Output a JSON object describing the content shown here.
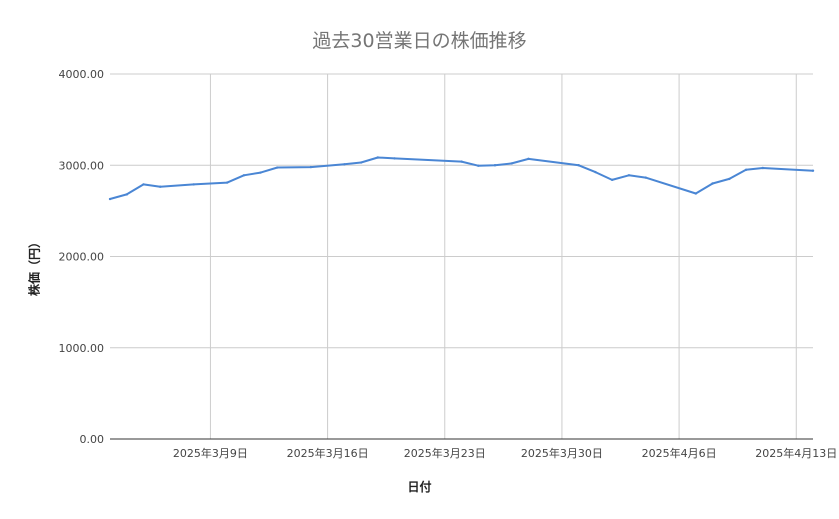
{
  "chart_data": {
    "type": "line",
    "title": "過去30営業日の株価推移",
    "xlabel": "日付",
    "ylabel": "株価（円）",
    "ylim": [
      0,
      4000
    ],
    "yticks": [
      "0.00",
      "1000.00",
      "2000.00",
      "3000.00",
      "4000.00"
    ],
    "x_range": [
      "2025-03-03",
      "2025-04-14"
    ],
    "xticks": [
      {
        "date": "2025-03-09",
        "label": "2025年3月9日"
      },
      {
        "date": "2025-03-16",
        "label": "2025年3月16日"
      },
      {
        "date": "2025-03-23",
        "label": "2025年3月23日"
      },
      {
        "date": "2025-03-30",
        "label": "2025年3月30日"
      },
      {
        "date": "2025-04-06",
        "label": "2025年4月6日"
      },
      {
        "date": "2025-04-13",
        "label": "2025年4月13日"
      }
    ],
    "grid": true,
    "legend": "none",
    "line_color": "#4a86d4",
    "series": [
      {
        "x": [
          "2025-03-03",
          "2025-03-04",
          "2025-03-05",
          "2025-03-06",
          "2025-03-08",
          "2025-03-10",
          "2025-03-11",
          "2025-03-12",
          "2025-03-13",
          "2025-03-15",
          "2025-03-17",
          "2025-03-18",
          "2025-03-19",
          "2025-03-20",
          "2025-03-24",
          "2025-03-25",
          "2025-03-26",
          "2025-03-27",
          "2025-03-28",
          "2025-03-31",
          "2025-04-01",
          "2025-04-02",
          "2025-04-03",
          "2025-04-04",
          "2025-04-07",
          "2025-04-08",
          "2025-04-09",
          "2025-04-10",
          "2025-04-11",
          "2025-04-14"
        ],
        "values": [
          2630,
          2680,
          2790,
          2765,
          2790,
          2810,
          2890,
          2920,
          2975,
          2980,
          3010,
          3030,
          3085,
          3075,
          3040,
          2995,
          3000,
          3020,
          3070,
          3000,
          2925,
          2840,
          2890,
          2865,
          2690,
          2800,
          2850,
          2950,
          2970,
          2940
        ]
      }
    ]
  }
}
